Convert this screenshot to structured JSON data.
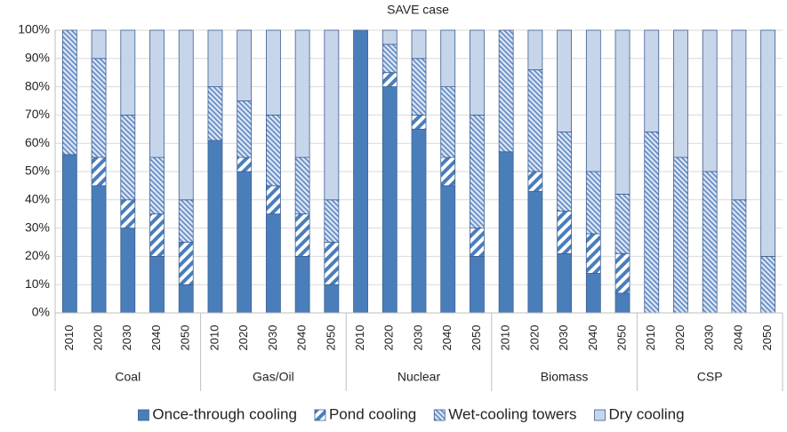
{
  "chart_data": {
    "type": "stacked-bar",
    "title": "SAVE case",
    "groups": [
      "Coal",
      "Gas/Oil",
      "Nuclear",
      "Biomass",
      "CSP"
    ],
    "categories": [
      "2010",
      "2020",
      "2030",
      "2040",
      "2050",
      "2010",
      "2020",
      "2030",
      "2040",
      "2050",
      "2010",
      "2020",
      "2030",
      "2040",
      "2050",
      "2010",
      "2020",
      "2030",
      "2040",
      "2050",
      "2010",
      "2020",
      "2030",
      "2040",
      "2050"
    ],
    "series": [
      {
        "name": "Once-through cooling",
        "color": "#4a7ebb",
        "pattern": "solid",
        "values": [
          56,
          45,
          30,
          20,
          10,
          61,
          50,
          35,
          20,
          10,
          100,
          80,
          65,
          45,
          20,
          57,
          43,
          21,
          14,
          7,
          0,
          0,
          0,
          0,
          0
        ]
      },
      {
        "name": "Pond cooling",
        "color": "#4a7ebb",
        "pattern": "wide-hatch",
        "values": [
          0,
          10,
          10,
          15,
          15,
          0,
          5,
          10,
          15,
          15,
          0,
          5,
          5,
          10,
          10,
          0,
          7,
          15,
          14,
          14,
          0,
          0,
          0,
          0,
          0
        ]
      },
      {
        "name": "Wet-cooling towers",
        "color": "#5b86c5",
        "pattern": "dense-hatch",
        "values": [
          44,
          35,
          30,
          20,
          15,
          19,
          20,
          25,
          20,
          15,
          0,
          10,
          20,
          25,
          40,
          43,
          36,
          28,
          22,
          21,
          64,
          55,
          50,
          40,
          20
        ]
      },
      {
        "name": "Dry cooling",
        "color": "#c6d5ea",
        "pattern": "solid",
        "values": [
          0,
          10,
          30,
          45,
          60,
          20,
          25,
          30,
          45,
          60,
          0,
          5,
          10,
          20,
          30,
          0,
          14,
          36,
          50,
          58,
          36,
          45,
          50,
          60,
          80
        ]
      }
    ],
    "ylim": [
      0,
      100
    ],
    "yticks": [
      {
        "value": 0,
        "label": "0%"
      },
      {
        "value": 10,
        "label": "10%"
      },
      {
        "value": 20,
        "label": "20%"
      },
      {
        "value": 30,
        "label": "30%"
      },
      {
        "value": 40,
        "label": "40%"
      },
      {
        "value": 50,
        "label": "50%"
      },
      {
        "value": 60,
        "label": "60%"
      },
      {
        "value": 70,
        "label": "70%"
      },
      {
        "value": 80,
        "label": "80%"
      },
      {
        "value": 90,
        "label": "90%"
      },
      {
        "value": 100,
        "label": "100%"
      }
    ],
    "grid": true,
    "legend": "bottom"
  }
}
